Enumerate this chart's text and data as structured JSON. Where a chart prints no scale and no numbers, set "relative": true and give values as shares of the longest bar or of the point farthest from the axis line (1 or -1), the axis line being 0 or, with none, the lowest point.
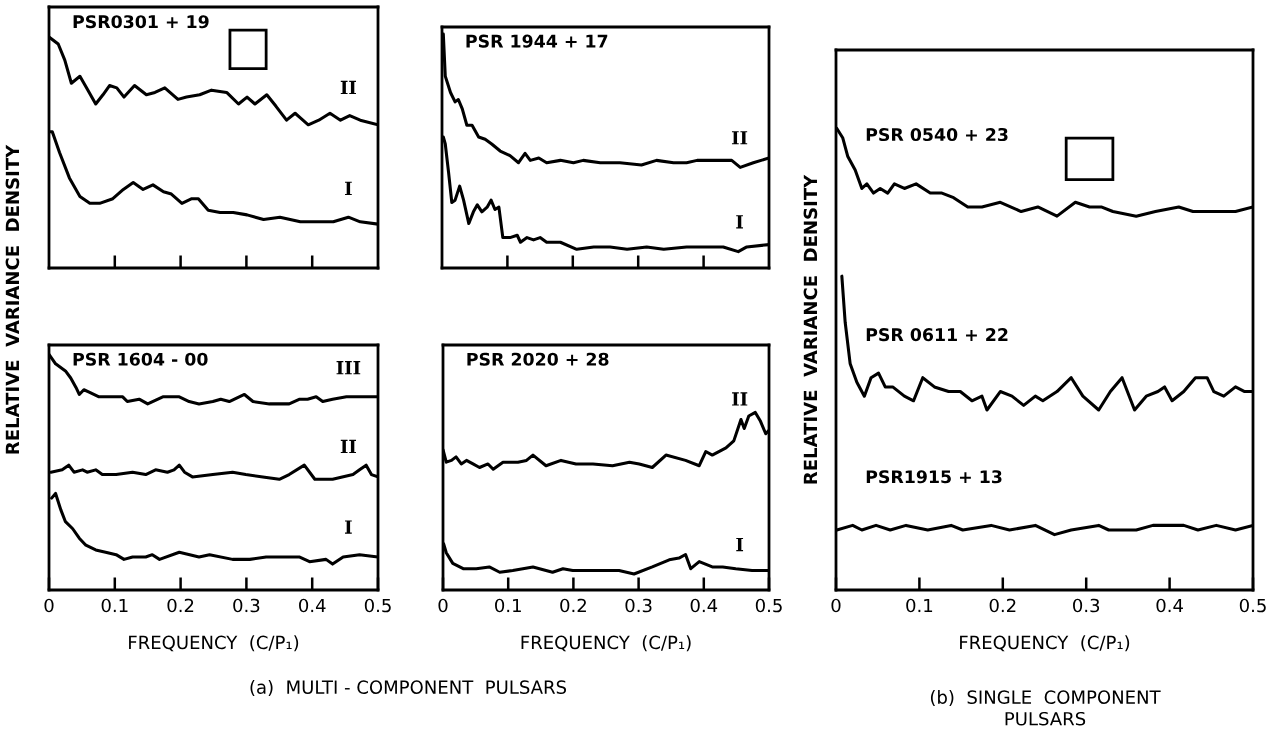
{
  "chart_data": [
    {
      "type": "line",
      "title": "PSR0301 + 19",
      "relative": true,
      "xlim": [
        0,
        0.5
      ],
      "xticks": [
        {
          "value": 0.1,
          "label": null
        },
        {
          "value": 0.2,
          "label": null
        },
        {
          "value": 0.3,
          "label": null
        },
        {
          "value": 0.4,
          "label": null
        }
      ],
      "tick_labels": false,
      "series": [
        {
          "name": "II",
          "color": "#000000",
          "x": [
            0,
            0.014,
            0.024,
            0.034,
            0.047,
            0.057,
            0.071,
            0.082,
            0.092,
            0.103,
            0.114,
            0.13,
            0.148,
            0.161,
            0.176,
            0.196,
            0.209,
            0.229,
            0.247,
            0.27,
            0.288,
            0.301,
            0.313,
            0.331,
            0.345,
            0.361,
            0.374,
            0.382,
            0.394,
            0.41,
            0.427,
            0.443,
            0.457,
            0.473,
            0.5
          ],
          "values": [
            1.0,
            0.97,
            0.9,
            0.8,
            0.83,
            0.78,
            0.71,
            0.75,
            0.79,
            0.78,
            0.74,
            0.79,
            0.75,
            0.76,
            0.78,
            0.73,
            0.74,
            0.75,
            0.77,
            0.76,
            0.71,
            0.74,
            0.71,
            0.75,
            0.7,
            0.64,
            0.67,
            0.65,
            0.62,
            0.64,
            0.67,
            0.64,
            0.66,
            0.64,
            0.62
          ]
        },
        {
          "name": "I",
          "color": "#000000",
          "x": [
            0,
            0.005,
            0.016,
            0.031,
            0.047,
            0.062,
            0.077,
            0.097,
            0.113,
            0.128,
            0.143,
            0.158,
            0.174,
            0.186,
            0.202,
            0.217,
            0.227,
            0.242,
            0.26,
            0.28,
            0.301,
            0.326,
            0.351,
            0.382,
            0.407,
            0.432,
            0.455,
            0.473,
            0.5
          ],
          "values": [
            0.59,
            0.59,
            0.5,
            0.39,
            0.31,
            0.28,
            0.28,
            0.3,
            0.34,
            0.37,
            0.34,
            0.36,
            0.33,
            0.32,
            0.28,
            0.3,
            0.3,
            0.25,
            0.24,
            0.24,
            0.23,
            0.21,
            0.22,
            0.2,
            0.2,
            0.2,
            0.22,
            0.2,
            0.19
          ]
        }
      ]
    },
    {
      "type": "line",
      "title": "PSR 1944 + 17",
      "relative": true,
      "xlim": [
        0,
        0.5
      ],
      "xticks": [
        {
          "value": 0.1,
          "label": null
        },
        {
          "value": 0.2,
          "label": null
        },
        {
          "value": 0.3,
          "label": null
        },
        {
          "value": 0.4,
          "label": null
        }
      ],
      "tick_labels": false,
      "series": [
        {
          "name": "II",
          "color": "#000000",
          "x": [
            0.002,
            0.005,
            0.013,
            0.02,
            0.025,
            0.031,
            0.038,
            0.046,
            0.056,
            0.066,
            0.076,
            0.089,
            0.104,
            0.117,
            0.127,
            0.135,
            0.148,
            0.16,
            0.181,
            0.201,
            0.216,
            0.242,
            0.272,
            0.305,
            0.328,
            0.354,
            0.374,
            0.39,
            0.41,
            0.443,
            0.456,
            0.476,
            0.5
          ],
          "values": [
            1.0,
            0.82,
            0.75,
            0.71,
            0.72,
            0.68,
            0.61,
            0.61,
            0.56,
            0.55,
            0.53,
            0.5,
            0.48,
            0.45,
            0.49,
            0.46,
            0.47,
            0.45,
            0.46,
            0.45,
            0.46,
            0.45,
            0.45,
            0.44,
            0.46,
            0.45,
            0.45,
            0.46,
            0.46,
            0.46,
            0.43,
            0.45,
            0.47
          ]
        },
        {
          "name": "I",
          "color": "#000000",
          "x": [
            0.002,
            0.005,
            0.01,
            0.015,
            0.02,
            0.027,
            0.033,
            0.041,
            0.048,
            0.054,
            0.061,
            0.069,
            0.075,
            0.081,
            0.087,
            0.093,
            0.104,
            0.115,
            0.12,
            0.13,
            0.14,
            0.15,
            0.16,
            0.181,
            0.206,
            0.232,
            0.257,
            0.283,
            0.313,
            0.339,
            0.374,
            0.4,
            0.43,
            0.453,
            0.466,
            0.5
          ],
          "values": [
            0.56,
            0.53,
            0.41,
            0.28,
            0.29,
            0.35,
            0.29,
            0.19,
            0.24,
            0.27,
            0.24,
            0.26,
            0.29,
            0.25,
            0.26,
            0.13,
            0.13,
            0.14,
            0.11,
            0.13,
            0.12,
            0.13,
            0.11,
            0.11,
            0.08,
            0.09,
            0.09,
            0.08,
            0.09,
            0.08,
            0.09,
            0.09,
            0.09,
            0.07,
            0.09,
            0.1
          ]
        }
      ]
    },
    {
      "type": "line",
      "title": "PSR 1604 - 00",
      "relative": true,
      "xlabel": "FREQUENCY  (C/P₁)",
      "ylabel": "RELATIVE  VARIANCE  DENSITY",
      "xlim": [
        0,
        0.5
      ],
      "xticks": [
        0,
        0.1,
        0.2,
        0.3,
        0.4,
        0.5
      ],
      "tick_labels": "x",
      "annotations": [
        "(a)  MULTI - COMPONENT  PULSARS"
      ],
      "series": [
        {
          "name": "III",
          "color": "#000000",
          "x": [
            0,
            0.01,
            0.025,
            0.033,
            0.041,
            0.046,
            0.053,
            0.061,
            0.076,
            0.091,
            0.112,
            0.119,
            0.137,
            0.15,
            0.173,
            0.198,
            0.213,
            0.228,
            0.249,
            0.261,
            0.274,
            0.297,
            0.31,
            0.335,
            0.365,
            0.381,
            0.393,
            0.406,
            0.416,
            0.431,
            0.452,
            0.472,
            0.5
          ],
          "values": [
            1.0,
            0.96,
            0.93,
            0.9,
            0.86,
            0.83,
            0.85,
            0.84,
            0.82,
            0.82,
            0.82,
            0.8,
            0.81,
            0.79,
            0.82,
            0.82,
            0.8,
            0.79,
            0.8,
            0.81,
            0.8,
            0.83,
            0.8,
            0.79,
            0.79,
            0.81,
            0.81,
            0.82,
            0.8,
            0.81,
            0.82,
            0.82,
            0.82
          ]
        },
        {
          "name": "II",
          "color": "#000000",
          "x": [
            0.003,
            0.02,
            0.03,
            0.038,
            0.051,
            0.058,
            0.071,
            0.081,
            0.102,
            0.127,
            0.147,
            0.162,
            0.18,
            0.19,
            0.198,
            0.206,
            0.218,
            0.249,
            0.279,
            0.299,
            0.325,
            0.35,
            0.365,
            0.388,
            0.404,
            0.431,
            0.462,
            0.472,
            0.482,
            0.49,
            0.5
          ],
          "values": [
            0.5,
            0.51,
            0.53,
            0.5,
            0.51,
            0.5,
            0.51,
            0.49,
            0.49,
            0.5,
            0.49,
            0.51,
            0.5,
            0.51,
            0.53,
            0.5,
            0.48,
            0.49,
            0.5,
            0.49,
            0.48,
            0.47,
            0.49,
            0.53,
            0.47,
            0.47,
            0.49,
            0.51,
            0.53,
            0.49,
            0.48
          ]
        },
        {
          "name": "I",
          "color": "#000000",
          "x": [
            0.004,
            0.01,
            0.018,
            0.025,
            0.036,
            0.046,
            0.056,
            0.071,
            0.086,
            0.102,
            0.114,
            0.127,
            0.147,
            0.157,
            0.168,
            0.198,
            0.228,
            0.244,
            0.279,
            0.305,
            0.33,
            0.381,
            0.396,
            0.421,
            0.431,
            0.447,
            0.472,
            0.5
          ],
          "values": [
            0.39,
            0.41,
            0.34,
            0.29,
            0.26,
            0.22,
            0.19,
            0.17,
            0.16,
            0.15,
            0.13,
            0.14,
            0.14,
            0.15,
            0.13,
            0.16,
            0.14,
            0.15,
            0.13,
            0.13,
            0.14,
            0.14,
            0.12,
            0.13,
            0.11,
            0.14,
            0.15,
            0.14
          ]
        }
      ]
    },
    {
      "type": "line",
      "title": "PSR 2020 + 28",
      "relative": true,
      "xlabel": "FREQUENCY  (C/P₁)",
      "xlim": [
        0,
        0.5
      ],
      "xticks": [
        0,
        0.1,
        0.2,
        0.3,
        0.4,
        0.5
      ],
      "tick_labels": "x",
      "series": [
        {
          "name": "II",
          "color": "#000000",
          "x": [
            0,
            0.005,
            0.013,
            0.02,
            0.028,
            0.036,
            0.046,
            0.056,
            0.069,
            0.077,
            0.092,
            0.105,
            0.115,
            0.128,
            0.138,
            0.158,
            0.181,
            0.204,
            0.23,
            0.26,
            0.286,
            0.301,
            0.321,
            0.342,
            0.372,
            0.393,
            0.403,
            0.413,
            0.434,
            0.446,
            0.457,
            0.462,
            0.469,
            0.479,
            0.487,
            0.495,
            0.5
          ],
          "values": [
            0.79,
            0.72,
            0.73,
            0.75,
            0.71,
            0.73,
            0.71,
            0.69,
            0.71,
            0.68,
            0.72,
            0.72,
            0.72,
            0.73,
            0.76,
            0.7,
            0.73,
            0.71,
            0.71,
            0.7,
            0.72,
            0.71,
            0.69,
            0.76,
            0.73,
            0.7,
            0.78,
            0.76,
            0.8,
            0.84,
            0.96,
            0.91,
            0.98,
            1.0,
            0.95,
            0.88,
            0.9
          ]
        },
        {
          "name": "I",
          "color": "#000000",
          "x": [
            0.001,
            0.005,
            0.015,
            0.031,
            0.051,
            0.071,
            0.087,
            0.107,
            0.138,
            0.168,
            0.184,
            0.199,
            0.24,
            0.27,
            0.293,
            0.321,
            0.347,
            0.362,
            0.372,
            0.38,
            0.393,
            0.413,
            0.429,
            0.449,
            0.474,
            0.5
          ],
          "values": [
            0.26,
            0.21,
            0.15,
            0.12,
            0.12,
            0.13,
            0.1,
            0.11,
            0.13,
            0.1,
            0.12,
            0.11,
            0.11,
            0.11,
            0.09,
            0.13,
            0.17,
            0.18,
            0.2,
            0.12,
            0.16,
            0.13,
            0.13,
            0.12,
            0.11,
            0.11
          ]
        }
      ]
    },
    {
      "type": "line",
      "relative": true,
      "xlabel": "FREQUENCY  (C/P₁)",
      "ylabel": "RELATIVE  VARIANCE  DENSITY",
      "xlim": [
        0,
        0.5
      ],
      "xticks": [
        0,
        0.1,
        0.2,
        0.3,
        0.4,
        0.5
      ],
      "tick_labels": "x",
      "annotations": [
        "(b)  SINGLE  COMPONENT\nPULSARS"
      ],
      "series": [
        {
          "name": "PSR 0540 + 23",
          "color": "#000000",
          "x": [
            0.001,
            0.008,
            0.014,
            0.023,
            0.031,
            0.037,
            0.045,
            0.053,
            0.062,
            0.07,
            0.082,
            0.096,
            0.113,
            0.127,
            0.141,
            0.158,
            0.175,
            0.197,
            0.222,
            0.242,
            0.265,
            0.287,
            0.304,
            0.318,
            0.332,
            0.36,
            0.383,
            0.411,
            0.428,
            0.439,
            0.456,
            0.479,
            0.5
          ],
          "values": [
            1.0,
            0.98,
            0.94,
            0.91,
            0.87,
            0.88,
            0.86,
            0.87,
            0.86,
            0.88,
            0.87,
            0.88,
            0.86,
            0.86,
            0.85,
            0.83,
            0.83,
            0.84,
            0.82,
            0.83,
            0.81,
            0.84,
            0.83,
            0.83,
            0.82,
            0.81,
            0.82,
            0.83,
            0.82,
            0.82,
            0.82,
            0.82,
            0.83
          ]
        },
        {
          "name": "PSR 0611 + 22",
          "color": "#000000",
          "x": [
            0.007,
            0.011,
            0.017,
            0.025,
            0.034,
            0.042,
            0.051,
            0.059,
            0.068,
            0.082,
            0.093,
            0.104,
            0.118,
            0.135,
            0.149,
            0.163,
            0.175,
            0.181,
            0.197,
            0.211,
            0.225,
            0.239,
            0.248,
            0.265,
            0.282,
            0.296,
            0.315,
            0.329,
            0.343,
            0.358,
            0.372,
            0.386,
            0.394,
            0.403,
            0.417,
            0.431,
            0.445,
            0.453,
            0.465,
            0.479,
            0.49,
            0.5
          ],
          "values": [
            0.68,
            0.58,
            0.49,
            0.45,
            0.42,
            0.46,
            0.47,
            0.44,
            0.44,
            0.42,
            0.41,
            0.46,
            0.44,
            0.43,
            0.43,
            0.41,
            0.42,
            0.39,
            0.43,
            0.42,
            0.4,
            0.42,
            0.41,
            0.43,
            0.46,
            0.42,
            0.39,
            0.43,
            0.46,
            0.39,
            0.42,
            0.43,
            0.44,
            0.41,
            0.43,
            0.46,
            0.46,
            0.43,
            0.42,
            0.44,
            0.43,
            0.43
          ]
        },
        {
          "name": "PSR1915 + 13",
          "color": "#000000",
          "x": [
            0.001,
            0.02,
            0.031,
            0.048,
            0.065,
            0.084,
            0.11,
            0.138,
            0.152,
            0.186,
            0.208,
            0.239,
            0.262,
            0.282,
            0.315,
            0.327,
            0.36,
            0.38,
            0.417,
            0.434,
            0.456,
            0.479,
            0.5
          ],
          "values": [
            0.13,
            0.14,
            0.13,
            0.14,
            0.13,
            0.14,
            0.13,
            0.14,
            0.13,
            0.14,
            0.13,
            0.14,
            0.12,
            0.13,
            0.14,
            0.13,
            0.13,
            0.14,
            0.14,
            0.13,
            0.14,
            0.13,
            0.14
          ]
        }
      ]
    }
  ]
}
